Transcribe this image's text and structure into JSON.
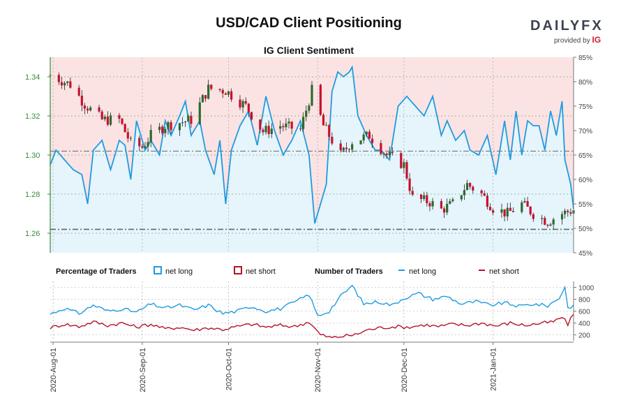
{
  "header": {
    "title": "USD/CAD Client Positioning",
    "subtitle": "IG Client Sentiment",
    "logo_text": "DAILYFX",
    "logo_sub": "provided by",
    "logo_ig": "IG"
  },
  "legend": {
    "pct_title": "Percentage of Traders",
    "pct_long": "net long",
    "pct_short": "net short",
    "num_title": "Number of Traders",
    "num_long": "net long",
    "num_short": "net short"
  },
  "colors": {
    "long": "#1f9bde",
    "short": "#b5122c",
    "up_candle": "#2b6b2b",
    "down_candle": "#c8102e",
    "short_fill": "#fbe3e4",
    "long_fill": "#e6f4fc",
    "price_axis": "#3a8a3a"
  },
  "chart_data": [
    {
      "type": "candlestick",
      "title": "IG Client Sentiment",
      "x_start": "2020-07-31",
      "x_end": "2021-01-29",
      "x_ticks": [
        "2020-Aug-01",
        "2020-Sep-01",
        "2020-Oct-01",
        "2020-Nov-01",
        "2020-Dec-01",
        "2021-Jan-01"
      ],
      "price_ylim": [
        1.25,
        1.35
      ],
      "price_ticks": [
        "1.26",
        "1.28",
        "1.30",
        "1.32",
        "1.34"
      ],
      "pct_ylim": [
        45,
        85
      ],
      "pct_ticks": [
        "45%",
        "50%",
        "55%",
        "60%",
        "65%",
        "70%",
        "75%",
        "80%",
        "85%"
      ],
      "reference_lines": [
        1.262,
        1.302
      ],
      "price_close_anchors": [
        [
          "2020-07-31",
          1.341
        ],
        [
          "2020-08-07",
          1.336
        ],
        [
          "2020-08-12",
          1.326
        ],
        [
          "2020-08-18",
          1.318
        ],
        [
          "2020-08-24",
          1.318
        ],
        [
          "2020-08-28",
          1.306
        ],
        [
          "2020-09-01",
          1.304
        ],
        [
          "2020-09-04",
          1.31
        ],
        [
          "2020-09-09",
          1.315
        ],
        [
          "2020-09-15",
          1.317
        ],
        [
          "2020-09-18",
          1.318
        ],
        [
          "2020-09-24",
          1.334
        ],
        [
          "2020-09-30",
          1.333
        ],
        [
          "2020-10-07",
          1.325
        ],
        [
          "2020-10-13",
          1.312
        ],
        [
          "2020-10-19",
          1.315
        ],
        [
          "2020-10-26",
          1.313
        ],
        [
          "2020-10-30",
          1.333
        ],
        [
          "2020-11-03",
          1.315
        ],
        [
          "2020-11-09",
          1.3
        ],
        [
          "2020-11-13",
          1.307
        ],
        [
          "2020-11-19",
          1.31
        ],
        [
          "2020-11-25",
          1.3
        ],
        [
          "2020-12-01",
          1.295
        ],
        [
          "2020-12-04",
          1.278
        ],
        [
          "2020-12-10",
          1.276
        ],
        [
          "2020-12-14",
          1.272
        ],
        [
          "2020-12-18",
          1.275
        ],
        [
          "2020-12-23",
          1.285
        ],
        [
          "2020-12-28",
          1.28
        ],
        [
          "2021-01-01",
          1.273
        ],
        [
          "2021-01-06",
          1.27
        ],
        [
          "2021-01-11",
          1.275
        ],
        [
          "2021-01-15",
          1.27
        ],
        [
          "2021-01-20",
          1.266
        ],
        [
          "2021-01-25",
          1.27
        ],
        [
          "2021-01-29",
          1.272
        ]
      ],
      "net_long_pct_anchors": [
        [
          "2020-07-31",
          63
        ],
        [
          "2020-08-02",
          66
        ],
        [
          "2020-08-05",
          64
        ],
        [
          "2020-08-08",
          62
        ],
        [
          "2020-08-11",
          61
        ],
        [
          "2020-08-13",
          55
        ],
        [
          "2020-08-15",
          66
        ],
        [
          "2020-08-18",
          68
        ],
        [
          "2020-08-21",
          62
        ],
        [
          "2020-08-24",
          68
        ],
        [
          "2020-08-26",
          67
        ],
        [
          "2020-08-28",
          60
        ],
        [
          "2020-08-30",
          72
        ],
        [
          "2020-09-02",
          66
        ],
        [
          "2020-09-04",
          68
        ],
        [
          "2020-09-07",
          65
        ],
        [
          "2020-09-09",
          72
        ],
        [
          "2020-09-11",
          69
        ],
        [
          "2020-09-14",
          73
        ],
        [
          "2020-09-16",
          76
        ],
        [
          "2020-09-18",
          69
        ],
        [
          "2020-09-21",
          72
        ],
        [
          "2020-09-23",
          66
        ],
        [
          "2020-09-26",
          61
        ],
        [
          "2020-09-28",
          68
        ],
        [
          "2020-09-30",
          55
        ],
        [
          "2020-10-02",
          66
        ],
        [
          "2020-10-05",
          71
        ],
        [
          "2020-10-08",
          74
        ],
        [
          "2020-10-11",
          67
        ],
        [
          "2020-10-14",
          77
        ],
        [
          "2020-10-17",
          70
        ],
        [
          "2020-10-20",
          65
        ],
        [
          "2020-10-23",
          68
        ],
        [
          "2020-10-26",
          72
        ],
        [
          "2020-10-29",
          65
        ],
        [
          "2020-10-31",
          51
        ],
        [
          "2020-11-02",
          55
        ],
        [
          "2020-11-04",
          59
        ],
        [
          "2020-11-06",
          78
        ],
        [
          "2020-11-08",
          82
        ],
        [
          "2020-11-10",
          81
        ],
        [
          "2020-11-12",
          82
        ],
        [
          "2020-11-13",
          83
        ],
        [
          "2020-11-15",
          73
        ],
        [
          "2020-11-18",
          69
        ],
        [
          "2020-11-21",
          66
        ],
        [
          "2020-11-23",
          66
        ],
        [
          "2020-11-26",
          64
        ],
        [
          "2020-11-29",
          75
        ],
        [
          "2020-12-02",
          77
        ],
        [
          "2020-12-05",
          75
        ],
        [
          "2020-12-08",
          73
        ],
        [
          "2020-12-11",
          77
        ],
        [
          "2020-12-14",
          69
        ],
        [
          "2020-12-16",
          72
        ],
        [
          "2020-12-19",
          68
        ],
        [
          "2020-12-22",
          70
        ],
        [
          "2020-12-24",
          66
        ],
        [
          "2020-12-27",
          65
        ],
        [
          "2020-12-30",
          69
        ],
        [
          "2021-01-02",
          61
        ],
        [
          "2021-01-05",
          72
        ],
        [
          "2021-01-07",
          64
        ],
        [
          "2021-01-09",
          74
        ],
        [
          "2021-01-11",
          65
        ],
        [
          "2021-01-13",
          72
        ],
        [
          "2021-01-15",
          71
        ],
        [
          "2021-01-17",
          71
        ],
        [
          "2021-01-19",
          66
        ],
        [
          "2021-01-21",
          74
        ],
        [
          "2021-01-23",
          69
        ],
        [
          "2021-01-25",
          76
        ],
        [
          "2021-01-26",
          64
        ],
        [
          "2021-01-28",
          59
        ],
        [
          "2021-01-29",
          54
        ]
      ]
    },
    {
      "type": "line",
      "title": "Number of Traders",
      "ylim": [
        100,
        1100
      ],
      "y_ticks": [
        "200",
        "400",
        "600",
        "800",
        "1000"
      ],
      "series": [
        {
          "name": "net long",
          "anchors": [
            [
              "2020-07-31",
              550
            ],
            [
              "2020-08-05",
              650
            ],
            [
              "2020-08-10",
              560
            ],
            [
              "2020-08-15",
              700
            ],
            [
              "2020-08-20",
              600
            ],
            [
              "2020-08-25",
              640
            ],
            [
              "2020-08-30",
              580
            ],
            [
              "2020-09-04",
              720
            ],
            [
              "2020-09-09",
              650
            ],
            [
              "2020-09-14",
              700
            ],
            [
              "2020-09-19",
              620
            ],
            [
              "2020-09-24",
              700
            ],
            [
              "2020-09-29",
              560
            ],
            [
              "2020-10-04",
              600
            ],
            [
              "2020-10-09",
              680
            ],
            [
              "2020-10-14",
              600
            ],
            [
              "2020-10-19",
              640
            ],
            [
              "2020-10-24",
              750
            ],
            [
              "2020-10-29",
              880
            ],
            [
              "2020-11-01",
              520
            ],
            [
              "2020-11-05",
              600
            ],
            [
              "2020-11-09",
              850
            ],
            [
              "2020-11-13",
              1030
            ],
            [
              "2020-11-17",
              720
            ],
            [
              "2020-11-22",
              760
            ],
            [
              "2020-11-27",
              700
            ],
            [
              "2020-12-01",
              820
            ],
            [
              "2020-12-06",
              900
            ],
            [
              "2020-12-11",
              800
            ],
            [
              "2020-12-16",
              850
            ],
            [
              "2020-12-21",
              720
            ],
            [
              "2020-12-26",
              760
            ],
            [
              "2020-12-31",
              700
            ],
            [
              "2021-01-05",
              740
            ],
            [
              "2021-01-10",
              680
            ],
            [
              "2021-01-15",
              720
            ],
            [
              "2021-01-20",
              690
            ],
            [
              "2021-01-24",
              820
            ],
            [
              "2021-01-26",
              1010
            ],
            [
              "2021-01-27",
              650
            ],
            [
              "2021-01-29",
              700
            ]
          ]
        },
        {
          "name": "net short",
          "anchors": [
            [
              "2020-07-31",
              320
            ],
            [
              "2020-08-05",
              380
            ],
            [
              "2020-08-10",
              340
            ],
            [
              "2020-08-15",
              420
            ],
            [
              "2020-08-20",
              360
            ],
            [
              "2020-08-25",
              400
            ],
            [
              "2020-08-30",
              330
            ],
            [
              "2020-09-04",
              380
            ],
            [
              "2020-09-09",
              300
            ],
            [
              "2020-09-14",
              330
            ],
            [
              "2020-09-19",
              280
            ],
            [
              "2020-09-24",
              320
            ],
            [
              "2020-09-29",
              290
            ],
            [
              "2020-10-04",
              340
            ],
            [
              "2020-10-09",
              380
            ],
            [
              "2020-10-14",
              330
            ],
            [
              "2020-10-19",
              360
            ],
            [
              "2020-10-24",
              340
            ],
            [
              "2020-10-29",
              420
            ],
            [
              "2020-11-02",
              200
            ],
            [
              "2020-11-06",
              150
            ],
            [
              "2020-11-10",
              180
            ],
            [
              "2020-11-14",
              200
            ],
            [
              "2020-11-18",
              280
            ],
            [
              "2020-11-23",
              320
            ],
            [
              "2020-11-28",
              340
            ],
            [
              "2020-12-03",
              330
            ],
            [
              "2020-12-08",
              370
            ],
            [
              "2020-12-13",
              340
            ],
            [
              "2020-12-18",
              380
            ],
            [
              "2020-12-23",
              360
            ],
            [
              "2020-12-28",
              400
            ],
            [
              "2021-01-02",
              350
            ],
            [
              "2021-01-07",
              400
            ],
            [
              "2021-01-12",
              360
            ],
            [
              "2021-01-17",
              390
            ],
            [
              "2021-01-22",
              420
            ],
            [
              "2021-01-25",
              500
            ],
            [
              "2021-01-27",
              380
            ],
            [
              "2021-01-29",
              550
            ]
          ]
        }
      ]
    }
  ]
}
